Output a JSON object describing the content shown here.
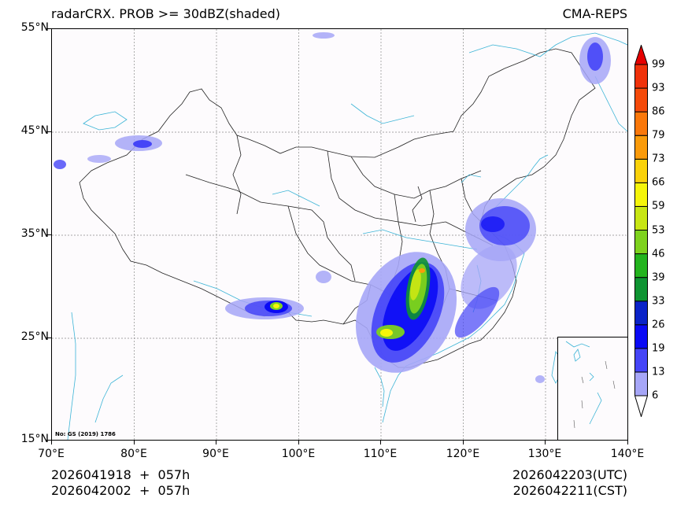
{
  "header": {
    "title_left": "radarCRX. PROB >= 30dBZ(shaded)",
    "title_right": "CMA-REPS"
  },
  "map": {
    "projection": "PlateCarree",
    "extent": {
      "lon": [
        70,
        140
      ],
      "lat": [
        15,
        55
      ]
    },
    "lat_ticks": [
      "55°N",
      "45°N",
      "35°N",
      "25°N",
      "15°N"
    ],
    "lon_ticks": [
      "70°E",
      "80°E",
      "90°E",
      "100°E",
      "110°E",
      "120°E",
      "130°E",
      "140°E"
    ],
    "review_number": "No: GS (2019) 1786",
    "gridline_style": "dotted gray",
    "coastline_color": "#3bb4d6",
    "border_color": "#222222",
    "background_color": "#fdfbfd"
  },
  "colorbar": {
    "labels": [
      "99",
      "93",
      "86",
      "79",
      "73",
      "66",
      "59",
      "53",
      "46",
      "39",
      "33",
      "26",
      "19",
      "13",
      "6"
    ],
    "levels": [
      6,
      13,
      19,
      26,
      33,
      39,
      46,
      53,
      59,
      66,
      73,
      79,
      86,
      93,
      99
    ],
    "colors": [
      "#a6a6f7",
      "#4545f7",
      "#0a0af5",
      "#0a23c8",
      "#0e9432",
      "#23b41e",
      "#7ed21e",
      "#c8e614",
      "#f5f50a",
      "#fad20a",
      "#fa9b0a",
      "#fa780a",
      "#f54b0a",
      "#f0320a"
    ],
    "over_color": "#e60000",
    "under_color": "#ffffff",
    "extend": "both"
  },
  "footer": {
    "init_utc": "2026041918  +  057h",
    "init_cst": "2026042002  +  057h",
    "valid_utc": "2026042203(UTC)",
    "valid_cst": "2026042211(CST)"
  }
}
